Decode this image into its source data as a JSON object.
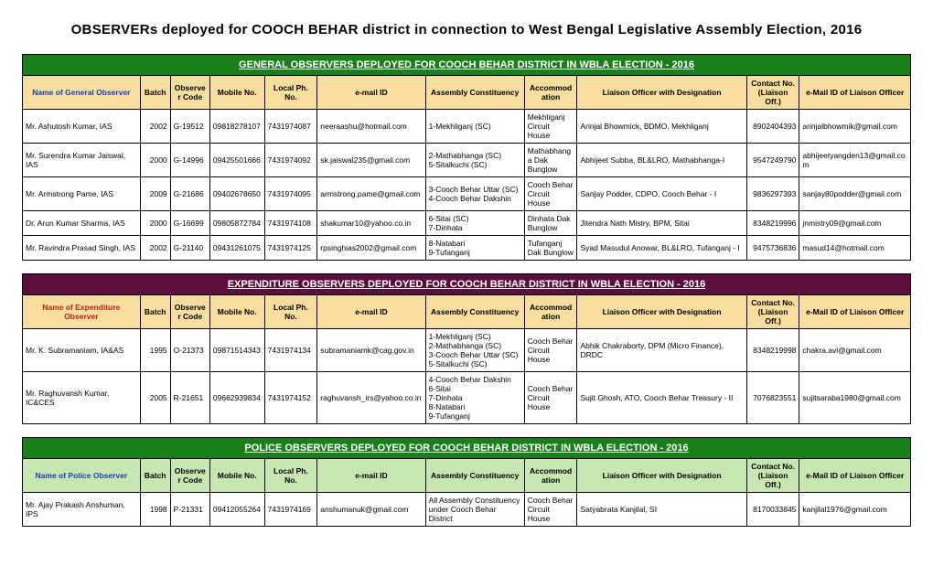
{
  "page_title": "OBSERVERs deployed for COOCH BEHAR district in connection to West Bengal Legislative Assembly Election, 2016",
  "sections": [
    {
      "title": "GENERAL OBSERVERS DEPLOYED FOR COOCH BEHAR DISTRICT IN WBLA ELECTION - 2016",
      "title_bg": "#1a7f1a",
      "header_bg": "#f7de9e",
      "name_color": "#1c3db5",
      "name_header": "Name of General Observer",
      "columns": [
        "Batch",
        "Observer Code",
        "Mobile No.",
        "Local Ph. No.",
        "e-mail ID",
        "Assembly Constituency",
        "Accommodation",
        "Liaison Officer with Designation",
        "Contact No. (Liaison Off.)",
        "e-Mail ID of Liaison Officer"
      ],
      "rows": [
        {
          "c": [
            "Mr. Ashutosh Kumar, IAS",
            "2002",
            "G-19512",
            "09818278107",
            "7431974087",
            "neeraashu@hotmail.com",
            "1-Mekhliganj (SC)",
            "Mekhliganj Circuit House",
            "Arinjal Bhowmick, BDMO, Mekhliganj",
            "8902404393",
            "arinjalbhowmik@gmail.com"
          ]
        },
        {
          "c": [
            "Mr. Surendra Kumar Jaiswal, IAS",
            "2000",
            "G-14996",
            "09425501666",
            "7431974092",
            "sk.jaiswal235@gmail.com",
            "2-Mathabhanga (SC)\n5-Sitalkuchi (SC)",
            "Mathabhanga Dak Bunglow",
            "Abhijeet Subba, BL&LRO, Mathabhanga-I",
            "9547249790",
            "abhijeetyangden13@gmail.com"
          ]
        },
        {
          "c": [
            "Mr. Armstrong Pame, IAS",
            "2009",
            "G-21686",
            "09402678650",
            "7431974095",
            "armstrong.pame@gmail.com",
            "3-Cooch Behar Uttar (SC)\n4-Cooch Behar Dakshin",
            "Cooch Behar Circuit House",
            "Sanjay Podder, CDPO, Cooch Behar - I",
            "9836297393",
            "sanjay80podder@gmail.com"
          ]
        },
        {
          "c": [
            "Dr. Arun Kumar Sharma, IAS",
            "2000",
            "G-16699",
            "09805872784",
            "7431974108",
            "shakumar10@yahoo.co.in",
            "6-Sitai (SC)\n7-Dinhata",
            "Dinhata Dak Bunglow",
            "Jitendra Nath Mistry, BPM, Sitai",
            "8348219996",
            "jnmistry09@gmail.com"
          ]
        },
        {
          "c": [
            "Mr. Ravindra Prasad Singh, IAS",
            "2002",
            "G-21140",
            "09431261075",
            "7431974125",
            "rpsinghias2002@gmail.com",
            "8-Natabari\n9-Tufanganj",
            "Tufanganj Dak Bunglow",
            "Syad Masudul Anowar, BL&LRO, Tufanganj - I",
            "9475736836",
            "masud14@hotmail.com"
          ]
        }
      ]
    },
    {
      "title": "EXPENDITURE OBSERVERS DEPLOYED FOR COOCH BEHAR DISTRICT IN WBLA ELECTION - 2016",
      "title_bg": "#5b0e3c",
      "header_bg": "#f7de9e",
      "name_color": "#b8221e",
      "name_header": "Name of Expenditure Observer",
      "columns": [
        "Batch",
        "Observer Code",
        "Mobile No.",
        "Local Ph. No.",
        "e-mail ID",
        "Assembly Constituency",
        "Accommodation",
        "Liaison Officer with Designation",
        "Contact No. (Liaison Off.)",
        "e-Mail ID of Liaison Officer"
      ],
      "rows": [
        {
          "c": [
            "Mr. K. Subramaniam, IA&AS",
            "1995",
            "O-21373",
            "09871514343",
            "7431974134",
            "subramaniamk@cag.gov.in",
            "1-Mekhliganj (SC)\n2-Mathabhanga (SC)\n3-Cooch Behar Uttar (SC)\n5-Sitalkuchi (SC)",
            "Cooch Behar Circuit House",
            "Abhik Chakraborty, DPM (Micro Finance), DRDC",
            "8348219998",
            "chakra.avi@gmail.com"
          ]
        },
        {
          "c": [
            "Mr. Raghuvansh Kumar, IC&CES",
            "2005",
            "R-21651",
            "09662939834",
            "7431974152",
            "raghuvansh_irs@yahoo.co.in",
            "4-Cooch Behar Dakshin\n6-Sitai\n7-Dinhata\n8-Natabari\n9-Tufanganj",
            "Cooch Behar Circuit House",
            "Sujit Ghosh, ATO, Cooch Behar Treasury - II",
            "7076823551",
            "sujitsaraba1980@gmail.com"
          ]
        }
      ]
    },
    {
      "title": "POLICE OBSERVERS DEPLOYED FOR COOCH BEHAR DISTRICT IN WBLA ELECTION - 2016",
      "title_bg": "#1a7f1a",
      "header_bg": "#c8e6b0",
      "name_color": "#1c3db5",
      "name_header": "Name of Police Observer",
      "columns": [
        "Batch",
        "Observer Code",
        "Mobile No.",
        "Local Ph. No.",
        "e-mail ID",
        "Assembly Constituency",
        "Accommodation",
        "Liaison Officer with Designation",
        "Contact No. (Liaison Off.)",
        "e-Mail ID of Liaison Officer"
      ],
      "rows": [
        {
          "c": [
            "Mr. Ajay Prakash Anshuman, IPS",
            "1998",
            "P-21331",
            "09412055264",
            "7431974169",
            "anshumanuk@gmail.com",
            "All Assembly Constituency under Cooch Behar District",
            "Cooch Behar Circuit House",
            "Satyabrata Kanjilal, SI",
            "8170033845",
            "kanjilal1976@gmail.com"
          ]
        }
      ]
    }
  ]
}
